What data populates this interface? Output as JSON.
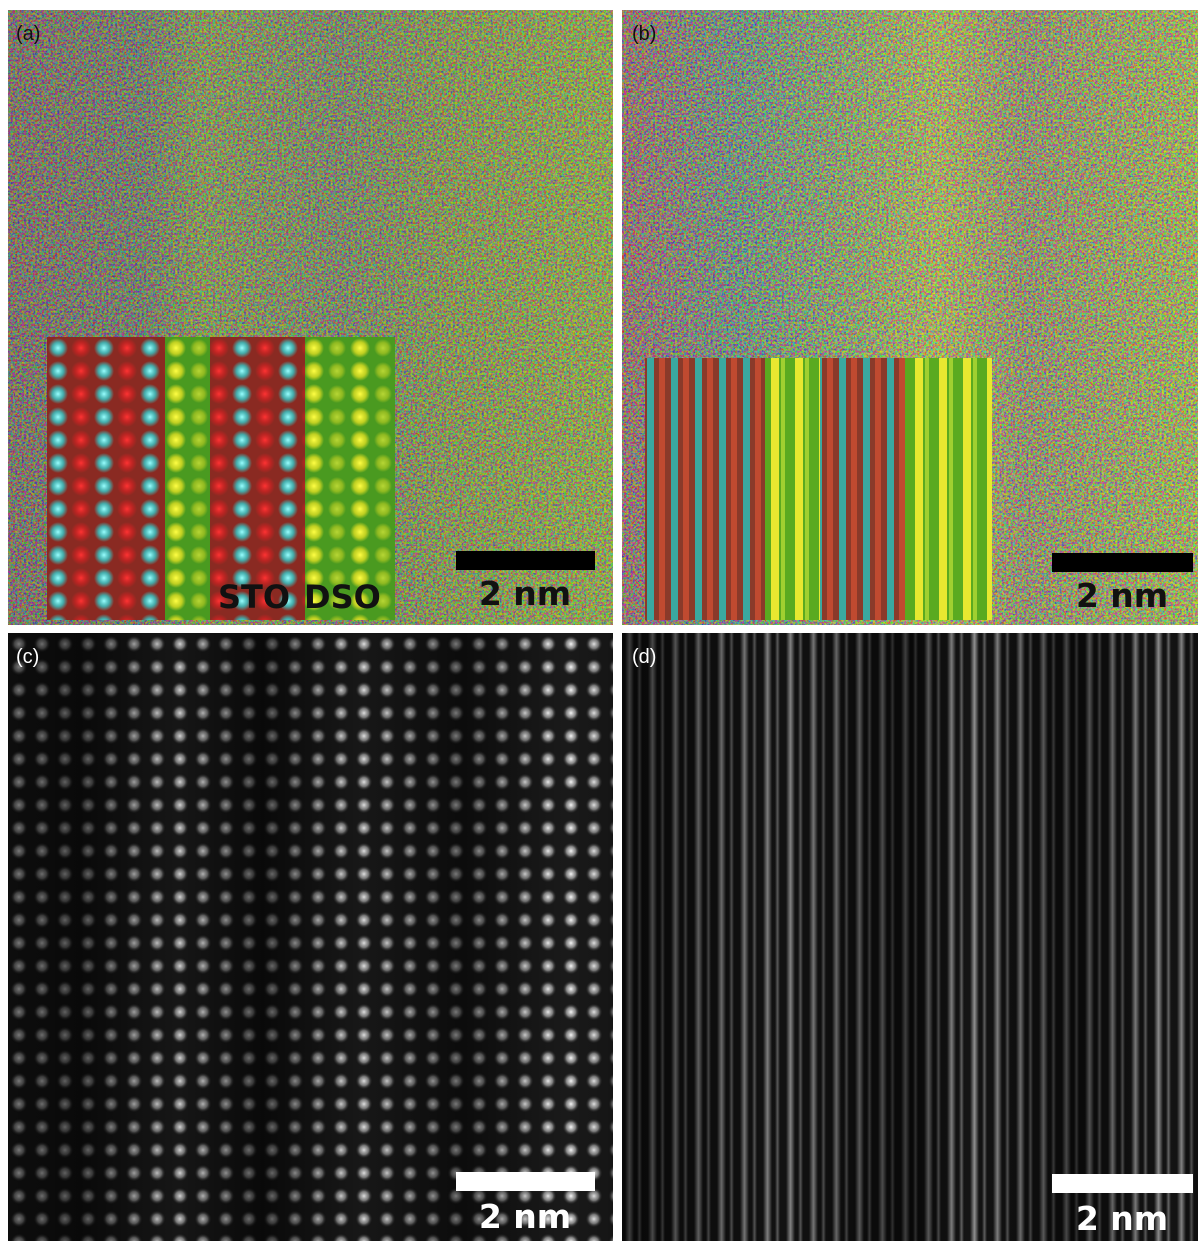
{
  "panels": [
    {
      "label": "(a)",
      "scale_bar": "2 nm",
      "inset_labels": [
        "STO",
        "DSO"
      ]
    },
    {
      "label": "(b)",
      "scale_bar": "2 nm"
    },
    {
      "label": "(c)",
      "scale_bar": "2 nm"
    },
    {
      "label": "(d)",
      "scale_bar": "2 nm"
    }
  ]
}
